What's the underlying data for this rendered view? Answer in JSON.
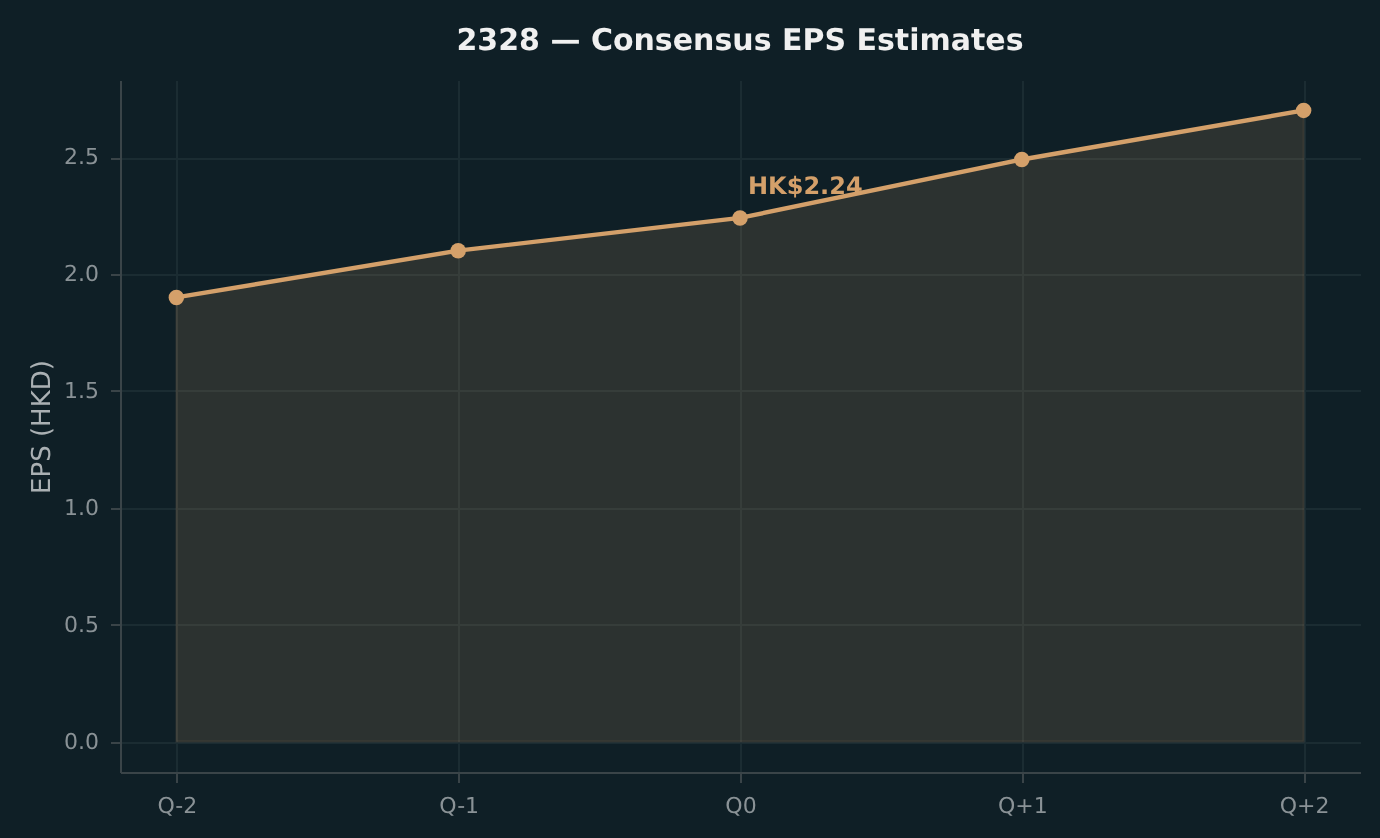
{
  "chart_data": {
    "type": "area",
    "title": "2328 — Consensus EPS Estimates",
    "ylabel": "EPS (HKD)",
    "categories": [
      "Q-2",
      "Q-1",
      "Q0",
      "Q+1",
      "Q+2"
    ],
    "series": [
      {
        "color": "#d4a06a",
        "values": [
          1.9,
          2.1,
          2.24,
          2.49,
          2.7
        ]
      }
    ],
    "ylim": [
      -0.13,
      2.83
    ],
    "yticks": [
      {
        "value": 0,
        "label": "0.0"
      },
      {
        "value": 0.5,
        "label": "0.5"
      },
      {
        "value": 1,
        "label": "1.0"
      },
      {
        "value": 1.5,
        "label": "1.5"
      },
      {
        "value": 2,
        "label": "2.0"
      },
      {
        "value": 2.5,
        "label": "2.5"
      }
    ],
    "annotations": [
      {
        "text": "HK$2.24",
        "x": "Q0",
        "y": 2.24
      }
    ],
    "grid": true,
    "marker": "circle",
    "line_style": "solid"
  }
}
